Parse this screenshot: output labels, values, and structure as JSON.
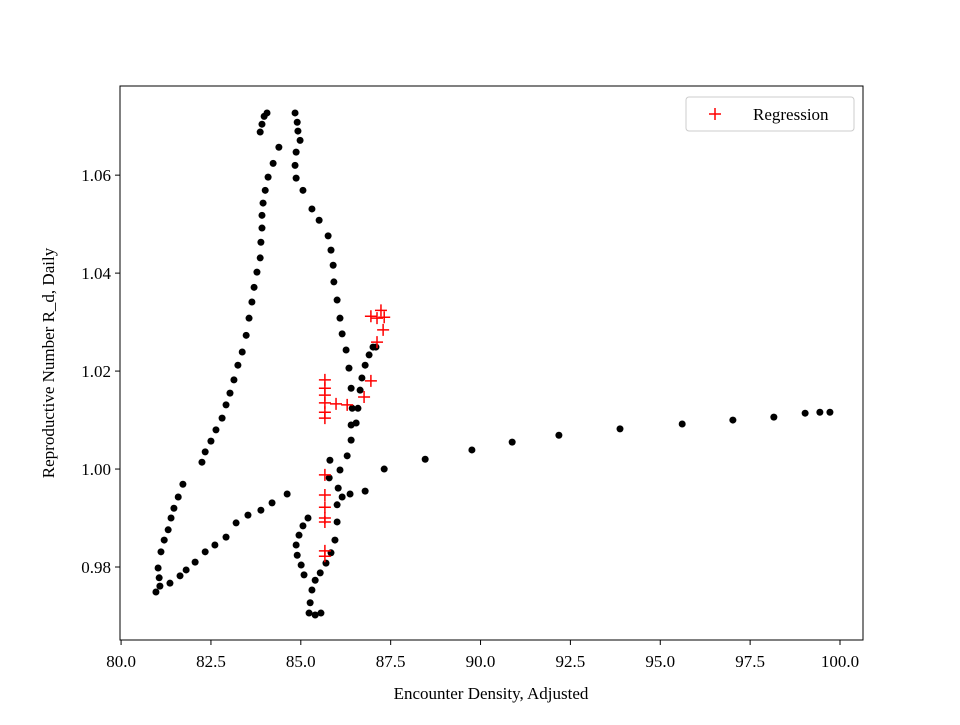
{
  "chart_data": {
    "type": "scatter",
    "xlabel": "Encounter Density, Adjusted",
    "ylabel": "Reproductive Number R_d, Daily",
    "xlim": [
      79.97,
      100.64
    ],
    "ylim": [
      0.9651,
      1.0782
    ],
    "xticks": [
      {
        "value": 80,
        "label": "80.0"
      },
      82.5,
      {
        "value": 85,
        "label": "85.0"
      },
      87.5,
      {
        "value": 90,
        "label": "90.0"
      },
      92.5,
      {
        "value": 95,
        "label": "95.0"
      },
      97.5,
      {
        "value": 100,
        "label": "100.0"
      }
    ],
    "yticks": [
      0.98,
      {
        "value": 1,
        "label": "1.00"
      },
      1.02,
      1.04,
      1.06
    ],
    "legend": "upper right",
    "series": [
      {
        "color": "#000000",
        "marker": "o",
        "x": [
          80.97,
          81.08,
          81.06,
          81.03,
          81.11,
          81.2,
          81.31,
          81.39,
          81.47,
          81.59,
          81.72,
          82.25,
          82.34,
          82.5,
          82.64,
          82.81,
          82.92,
          83.03,
          83.14,
          83.25,
          83.37,
          83.48,
          83.56,
          83.64,
          83.7,
          83.78,
          83.87,
          83.89,
          83.92,
          83.92,
          83.95,
          84.01,
          84.09,
          84.23,
          84.39,
          83.87,
          83.92,
          83.98,
          84.06,
          84.84,
          84.9,
          84.92,
          84.98,
          84.87,
          84.84,
          84.87,
          85.06,
          85.31,
          85.51,
          85.76,
          85.84,
          85.9,
          85.92,
          86.01,
          86.09,
          86.15,
          86.26,
          86.34,
          86.4,
          86.43,
          86.4,
          86.4,
          86.29,
          86.09,
          86.04,
          86.01,
          86.01,
          85.95,
          85.84,
          85.7,
          85.54,
          85.4,
          85.31,
          85.26,
          85.23,
          85.4,
          85.56,
          81.36,
          81.64,
          81.81,
          82.06,
          82.34,
          82.61,
          82.92,
          83.2,
          83.53,
          83.89,
          84.2,
          84.62,
          84.87,
          84.95,
          85.06,
          85.2,
          84.9,
          85.01,
          85.09,
          85.81,
          85.79,
          86.15,
          86.37,
          86.79,
          86.54,
          86.59,
          86.65,
          86.7,
          86.79,
          86.9,
          87.01,
          87.09,
          87.32,
          88.46,
          89.76,
          90.88,
          92.18,
          93.88,
          95.61,
          97.02,
          98.16,
          99.03,
          99.44,
          99.72
        ],
        "values": [
          0.9749,
          0.9761,
          0.9778,
          0.9798,
          0.9831,
          0.9855,
          0.9876,
          0.99,
          0.992,
          0.9943,
          0.9969,
          1.0014,
          1.0035,
          1.0057,
          1.008,
          1.0104,
          1.0131,
          1.0155,
          1.0182,
          1.0212,
          1.0239,
          1.0273,
          1.0308,
          1.0341,
          1.0371,
          1.0402,
          1.0431,
          1.0463,
          1.0492,
          1.0518,
          1.0543,
          1.0569,
          1.0596,
          1.0624,
          1.0657,
          1.0688,
          1.0704,
          1.072,
          1.0727,
          1.0727,
          1.0708,
          1.069,
          1.0671,
          1.0647,
          1.062,
          1.0594,
          1.0569,
          1.0531,
          1.0508,
          1.0476,
          1.0447,
          1.0416,
          1.0382,
          1.0345,
          1.0308,
          1.0276,
          1.0243,
          1.0206,
          1.0165,
          1.0124,
          1.009,
          1.0059,
          1.0027,
          0.9998,
          0.9961,
          0.9927,
          0.9892,
          0.9855,
          0.9829,
          0.9808,
          0.9788,
          0.9773,
          0.9753,
          0.9727,
          0.9706,
          0.9702,
          0.9706,
          0.9767,
          0.9782,
          0.9794,
          0.981,
          0.9831,
          0.9845,
          0.9861,
          0.989,
          0.9906,
          0.9916,
          0.9931,
          0.9949,
          0.9845,
          0.9865,
          0.9884,
          0.99,
          0.9824,
          0.9804,
          0.9784,
          1.0018,
          0.9982,
          0.9943,
          0.9949,
          0.9955,
          1.0094,
          1.0124,
          1.0161,
          1.0186,
          1.0212,
          1.0233,
          1.0249,
          1.0249,
          1.0,
          1.002,
          1.0039,
          1.0055,
          1.0069,
          1.0082,
          1.0092,
          1.01,
          1.0106,
          1.0114,
          1.0116,
          1.0116
        ]
      },
      {
        "name": "Regression",
        "color": "#ff0000",
        "marker": "+",
        "x": [
          85.67,
          85.67,
          85.67,
          85.67,
          85.67,
          85.67,
          85.98,
          86.29,
          86.76,
          86.95,
          86.95,
          87.12,
          87.23,
          87.32,
          87.29,
          87.12,
          85.67,
          85.67,
          85.67,
          85.67,
          85.67,
          85.67,
          85.67
        ],
        "values": [
          1.0182,
          1.0165,
          1.0151,
          1.0135,
          1.0116,
          1.0104,
          1.0133,
          1.0131,
          1.0147,
          1.018,
          1.0312,
          1.0308,
          1.0324,
          1.031,
          1.0284,
          1.0259,
          0.9988,
          0.9947,
          0.9922,
          0.99,
          0.9892,
          0.9833,
          0.9822
        ]
      }
    ]
  }
}
